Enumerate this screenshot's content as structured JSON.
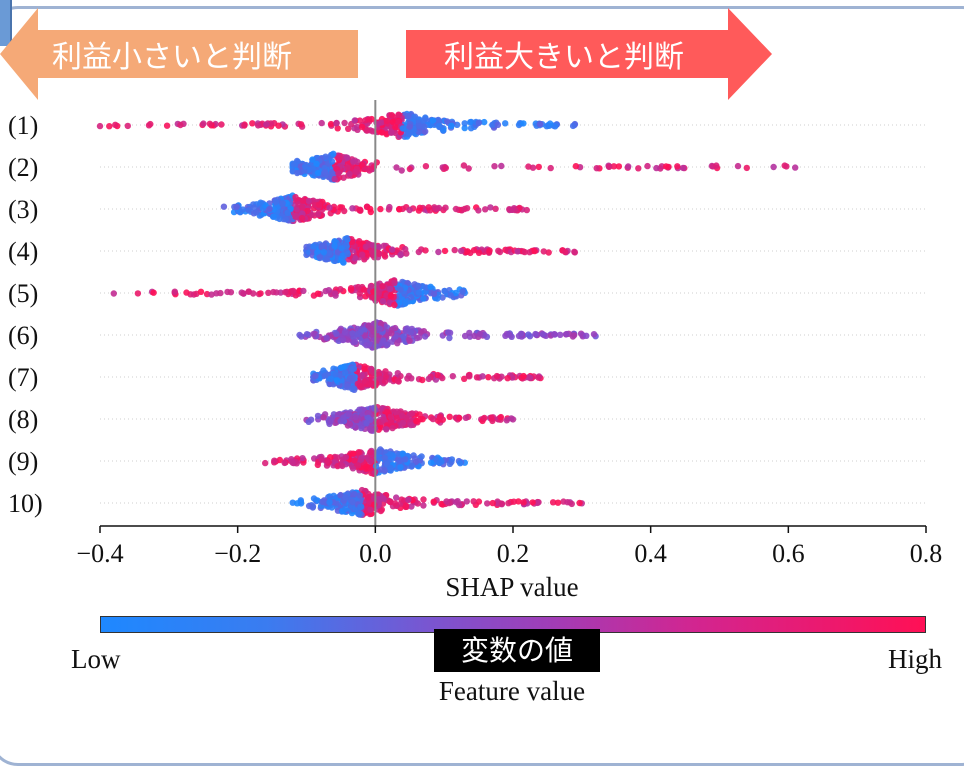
{
  "banner": {
    "left_label": "利益小さいと判断",
    "right_label": "利益大きいと判断",
    "left_color": "#f5a977",
    "right_color": "#ff5a5a"
  },
  "chart_data": {
    "type": "scatter",
    "subtype": "shap-beeswarm",
    "xlabel": "SHAP value",
    "xlim": [
      -0.4,
      0.8
    ],
    "xticks": [
      -0.4,
      -0.2,
      0.0,
      0.2,
      0.4,
      0.6,
      0.8
    ],
    "xtick_labels": [
      "−0.4",
      "−0.2",
      "0.0",
      "0.2",
      "0.4",
      "0.6",
      "0.8"
    ],
    "categories": [
      "(1)",
      "(2)",
      "(3)",
      "(4)",
      "(5)",
      "(6)",
      "(7)",
      "(8)",
      "(9)",
      "10)"
    ],
    "grid": "horizontal dotted rows",
    "zero_line": true,
    "features": [
      {
        "name": "(1)",
        "min": -0.4,
        "max": 0.29,
        "peak": 0.04,
        "low_side": "high",
        "high_side": "low"
      },
      {
        "name": "(2)",
        "min": -0.12,
        "max": 0.61,
        "peak": -0.06,
        "low_side": "low",
        "high_side": "high"
      },
      {
        "name": "(3)",
        "min": -0.22,
        "max": 0.22,
        "peak": -0.12,
        "low_side": "low",
        "high_side": "high"
      },
      {
        "name": "(4)",
        "min": -0.1,
        "max": 0.29,
        "peak": -0.04,
        "low_side": "low",
        "high_side": "high"
      },
      {
        "name": "(5)",
        "min": -0.38,
        "max": 0.13,
        "peak": 0.03,
        "low_side": "high",
        "high_side": "low"
      },
      {
        "name": "(6)",
        "min": -0.11,
        "max": 0.32,
        "peak": 0.0,
        "low_side": "mixed",
        "high_side": "mixed"
      },
      {
        "name": "(7)",
        "min": -0.09,
        "max": 0.24,
        "peak": -0.03,
        "low_side": "low",
        "high_side": "high"
      },
      {
        "name": "(8)",
        "min": -0.1,
        "max": 0.2,
        "peak": 0.0,
        "low_side": "mixed",
        "high_side": "high"
      },
      {
        "name": "(9)",
        "min": -0.16,
        "max": 0.13,
        "peak": 0.0,
        "low_side": "high",
        "high_side": "low"
      },
      {
        "name": "10)",
        "min": -0.12,
        "max": 0.3,
        "peak": -0.02,
        "low_side": "low",
        "high_side": "high"
      }
    ],
    "colorbar": {
      "low_label": "Low",
      "high_label": "High",
      "title": "Feature value",
      "badge": "変数の値",
      "low_color": "#1e88ff",
      "high_color": "#ff1055"
    }
  }
}
